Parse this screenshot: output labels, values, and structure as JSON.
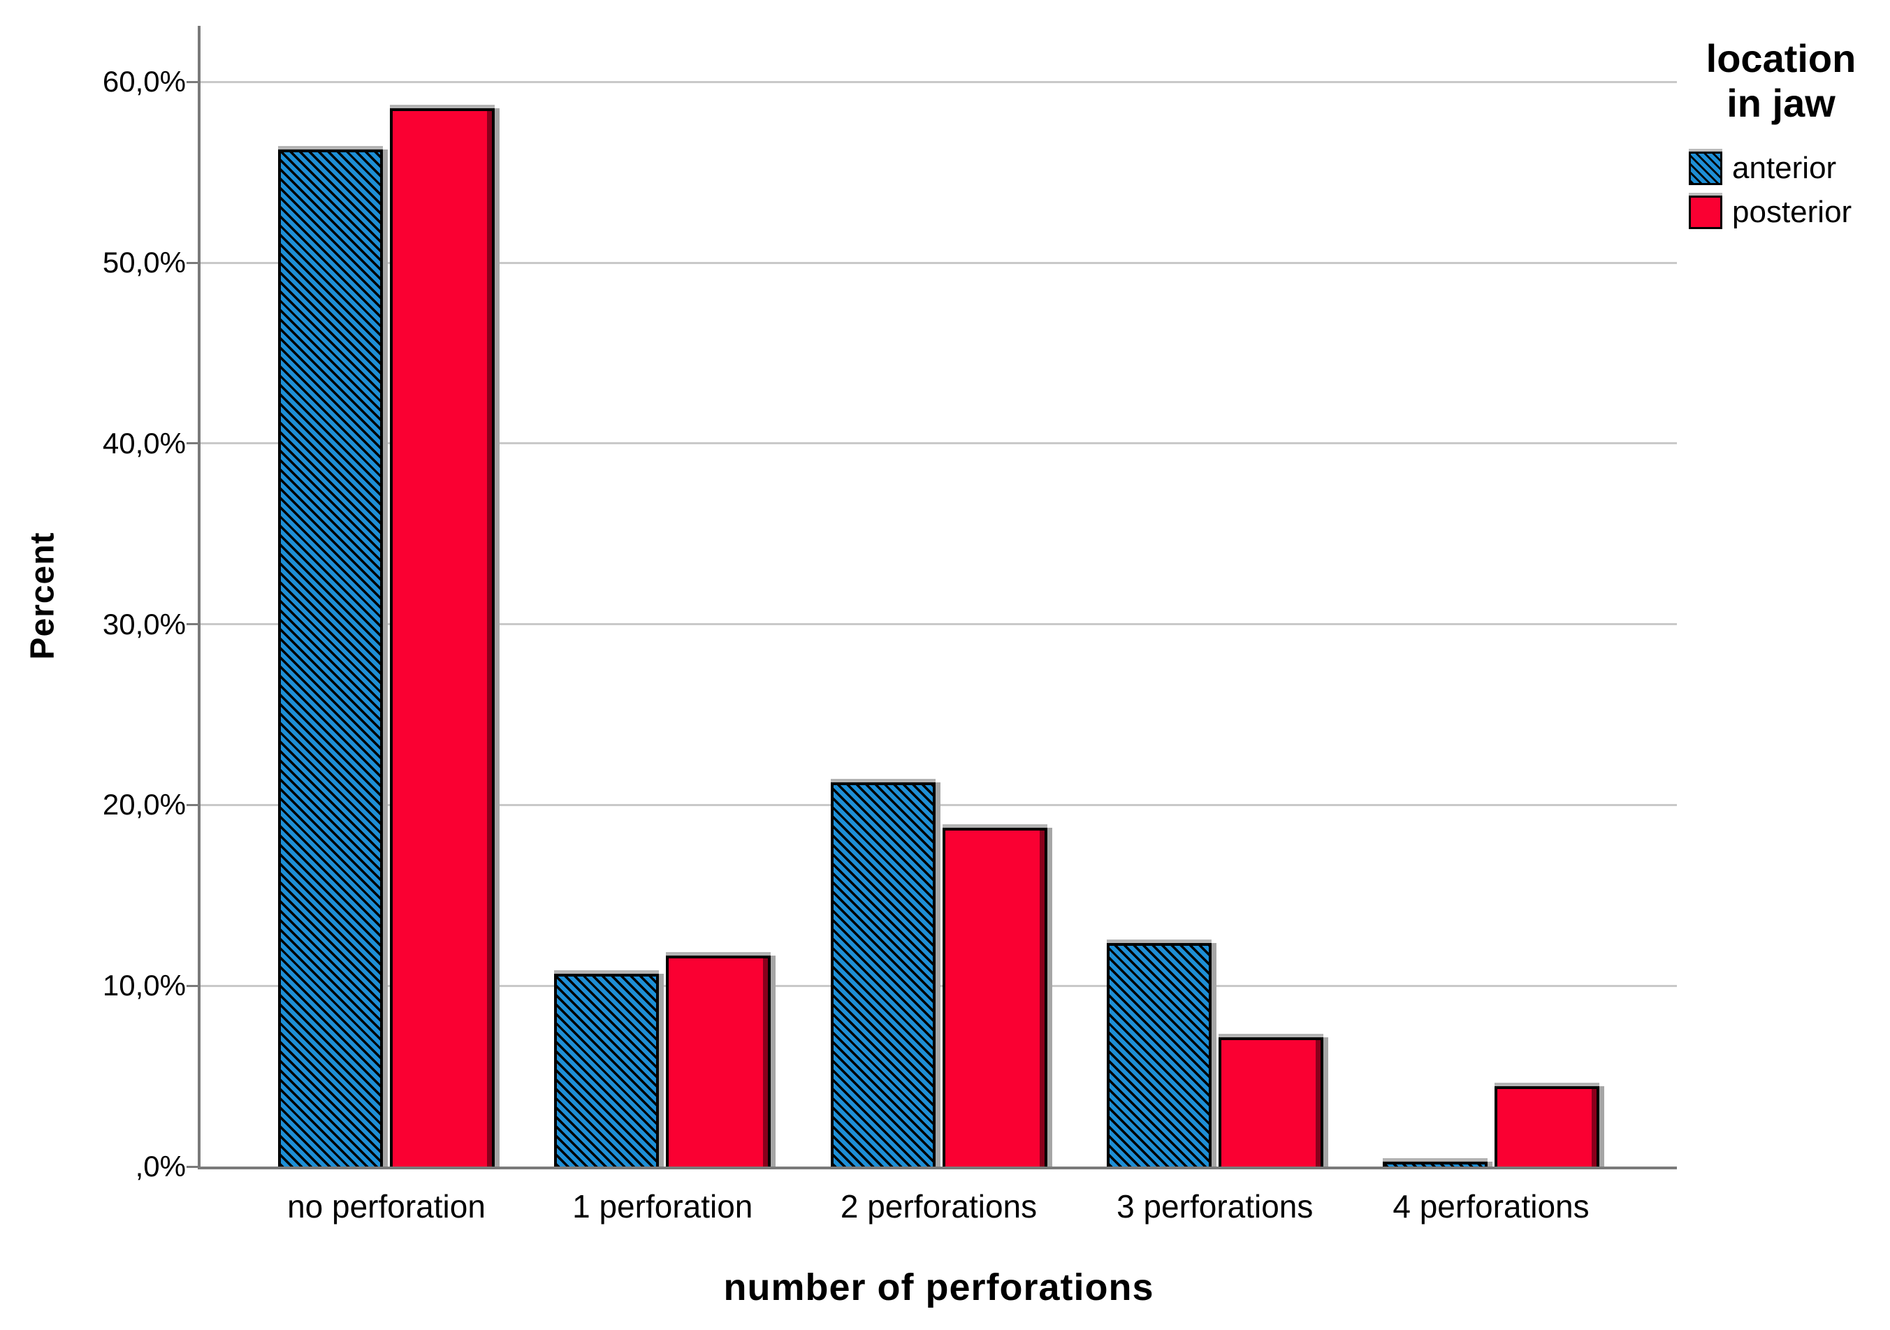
{
  "chart_data": {
    "type": "bar",
    "title": "",
    "xlabel": "number of perforations",
    "ylabel": "Percent",
    "categories": [
      "no perforation",
      "1 perforation",
      "2 perforations",
      "3 perforations",
      "4 perforations"
    ],
    "series": [
      {
        "name": "anterior",
        "color": "#1e8fd6",
        "hatch": true,
        "values": [
          56.1,
          10.5,
          21.1,
          12.2,
          0.1
        ]
      },
      {
        "name": "posterior",
        "color": "#fa0032",
        "hatch": false,
        "values": [
          58.4,
          11.5,
          18.6,
          7.0,
          4.3
        ]
      }
    ],
    "ylim": [
      0,
      63.1
    ],
    "yticks": [
      {
        "value": 0,
        "label": ",0%"
      },
      {
        "value": 10,
        "label": "10,0%"
      },
      {
        "value": 20,
        "label": "20,0%"
      },
      {
        "value": 30,
        "label": "30,0%"
      },
      {
        "value": 40,
        "label": "40,0%"
      },
      {
        "value": 50,
        "label": "50,0%"
      },
      {
        "value": 60,
        "label": "60,0%"
      }
    ],
    "grid": true,
    "legend": {
      "position": "top-right",
      "title_line1": "location",
      "title_line2": "in jaw",
      "entries": [
        "anterior",
        "posterior"
      ]
    },
    "colors": {
      "anterior": "#1e8fd6",
      "posterior": "#fa0032",
      "bar_border": "#000000",
      "gridline": "#c9c9c9",
      "axis": "#7a7a7a",
      "bar_shadow": "#b4b4b4",
      "text": "#000000",
      "background": "#ffffff"
    }
  }
}
